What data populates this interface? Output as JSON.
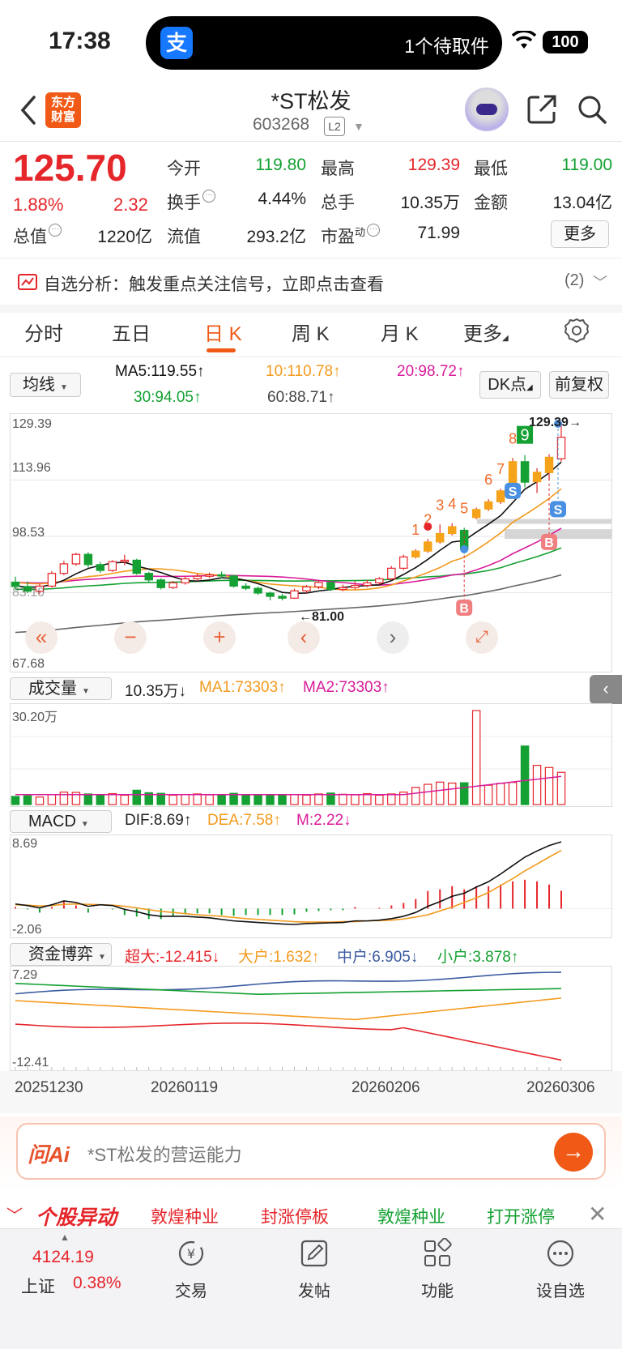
{
  "status_bar": {
    "time": "17:38",
    "island_app_icon": "支",
    "island_text": "1个待取件",
    "battery": "100"
  },
  "header": {
    "logo_text": "东方财富",
    "title": "*ST松发",
    "code": "603268",
    "level_badge": "L2"
  },
  "quote": {
    "price": "125.70",
    "change_pct": "1.88%",
    "change": "2.32",
    "fields": [
      {
        "label": "今开",
        "value": "119.80",
        "color": "green"
      },
      {
        "label": "最高",
        "value": "129.39",
        "color": "red"
      },
      {
        "label": "最低",
        "value": "119.00",
        "color": "green"
      },
      {
        "label": "换手",
        "value": "4.44%",
        "color": "black"
      },
      {
        "label": "总手",
        "value": "10.35万",
        "color": "black"
      },
      {
        "label": "金额",
        "value": "13.04亿",
        "color": "black"
      },
      {
        "label": "总值",
        "value": "1220亿",
        "color": "black"
      },
      {
        "label": "流值",
        "value": "293.2亿",
        "color": "black"
      },
      {
        "label": "市盈",
        "value": "71.99",
        "color": "black"
      }
    ],
    "pe_superscript": "动",
    "more_button": "更多"
  },
  "alert": {
    "text": "自选分析：触发重点关注信号，立即点击查看",
    "count": "(2)"
  },
  "tabs": [
    "分时",
    "五日",
    "日 K",
    "周 K",
    "月 K",
    "更多"
  ],
  "active_tab": "日 K",
  "ma_row": {
    "selector": "均线",
    "ma5": "MA5:119.55↑",
    "ma10": "10:110.78↑",
    "ma20": "20:98.72↑",
    "ma30": "30:94.05↑",
    "ma60": "60:88.71↑",
    "dk_button": "DK点",
    "adjust_button": "前复权"
  },
  "chart_data": {
    "type": "candlestick",
    "y_axis_labels": [
      "129.39",
      "113.96",
      "98.53",
      "83.10",
      "67.68"
    ],
    "high_label": "129.39→",
    "low_label": "←81.00",
    "ylim": [
      67.68,
      129.39
    ],
    "signal_markers": [
      "1",
      "2",
      "3",
      "4",
      "5",
      "6",
      "7",
      "8",
      "9"
    ],
    "buy_marker": "B",
    "sell_marker": "S",
    "candles": [
      [
        86.0,
        84.8,
        87.5,
        84.0
      ],
      [
        84.8,
        83.5,
        86.2,
        83.0
      ],
      [
        83.5,
        84.9,
        85.5,
        82.8
      ],
      [
        84.9,
        88.4,
        89.0,
        84.5
      ],
      [
        88.4,
        91.0,
        91.8,
        87.9
      ],
      [
        91.0,
        93.6,
        94.0,
        90.5
      ],
      [
        93.6,
        90.8,
        94.2,
        90.0
      ],
      [
        90.8,
        89.2,
        91.5,
        88.5
      ],
      [
        89.2,
        91.6,
        92.0,
        88.8
      ],
      [
        91.6,
        92.0,
        93.5,
        90.6
      ],
      [
        92.0,
        88.4,
        92.4,
        88.0
      ],
      [
        88.4,
        86.6,
        88.8,
        86.0
      ],
      [
        86.6,
        84.5,
        87.0,
        84.0
      ],
      [
        84.5,
        85.8,
        86.3,
        84.1
      ],
      [
        85.8,
        86.9,
        87.6,
        85.3
      ],
      [
        86.9,
        87.6,
        88.4,
        86.3
      ],
      [
        87.6,
        88.0,
        88.6,
        87.1
      ],
      [
        88.0,
        87.7,
        88.9,
        87.0
      ],
      [
        87.7,
        84.9,
        88.0,
        84.5
      ],
      [
        84.9,
        84.3,
        85.7,
        83.8
      ],
      [
        84.3,
        83.0,
        84.8,
        82.5
      ],
      [
        83.0,
        82.1,
        83.4,
        81.0
      ],
      [
        82.1,
        81.6,
        82.8,
        81.0
      ],
      [
        81.6,
        83.6,
        84.2,
        81.4
      ],
      [
        83.6,
        84.7,
        85.2,
        83.0
      ],
      [
        84.7,
        85.9,
        86.5,
        84.1
      ],
      [
        85.9,
        84.0,
        86.2,
        83.6
      ],
      [
        84.0,
        84.5,
        85.3,
        83.5
      ],
      [
        84.5,
        85.1,
        86.2,
        84.0
      ],
      [
        85.1,
        85.8,
        86.6,
        84.6
      ],
      [
        85.8,
        86.9,
        87.4,
        85.3
      ],
      [
        86.9,
        89.8,
        90.4,
        86.5
      ],
      [
        89.8,
        92.9,
        93.5,
        89.3
      ],
      [
        92.9,
        94.5,
        95.0,
        92.5
      ],
      [
        94.5,
        97.0,
        97.8,
        94.0
      ],
      [
        97.0,
        99.3,
        101.8,
        96.5
      ],
      [
        99.3,
        101.2,
        102.1,
        98.8
      ],
      [
        100.2,
        95.0,
        100.9,
        93.8
      ],
      [
        103.7,
        105.9,
        106.4,
        103.2
      ],
      [
        106.0,
        108.0,
        108.7,
        105.5
      ],
      [
        108.0,
        111.0,
        111.6,
        107.4
      ],
      [
        113.0,
        119.0,
        120.0,
        112.5
      ],
      [
        119.0,
        113.4,
        120.8,
        112.0
      ],
      [
        113.5,
        116.1,
        117.2,
        110.4
      ],
      [
        116.0,
        120.2,
        121.0,
        113.8
      ],
      [
        119.8,
        125.7,
        129.39,
        119.0
      ]
    ]
  },
  "volume": {
    "selector": "成交量",
    "value": "10.35万↓",
    "ma1": "MA1:73303↑",
    "ma2": "MA2:73303↑",
    "max_label": "30.20万"
  },
  "macd": {
    "selector": "MACD",
    "dif": "DIF:8.69↑",
    "dea": "DEA:7.58↑",
    "m": "M:2.22↓",
    "top_label": "8.69",
    "bottom_label": "-2.06"
  },
  "fund_flow": {
    "selector": "资金博弈",
    "super_large": "超大:-12.415↓",
    "large": "大户:1.632↑",
    "medium": "中户:6.905↓",
    "small": "小户:3.878↑",
    "top_label": "7.29",
    "bottom_label": "-12.41"
  },
  "dates": [
    "20251230",
    "20260119",
    "20260206",
    "20260306"
  ],
  "ask_ai": {
    "logo": "问Ai",
    "placeholder": "*ST松发的营运能力"
  },
  "movers": {
    "title": "个股异动",
    "items": [
      {
        "text": "敦煌种业",
        "color": "red"
      },
      {
        "text": "封涨停板",
        "color": "red"
      },
      {
        "text": "敦煌种业",
        "color": "green"
      },
      {
        "text": "打开涨停",
        "color": "green"
      }
    ]
  },
  "bottom_nav": {
    "index_value": "4124.19",
    "index_name": "上证",
    "index_pct": "0.38%",
    "items": [
      "交易",
      "发帖",
      "功能",
      "设自选"
    ]
  },
  "colors": {
    "up": "#e5262b",
    "down": "#14a032",
    "accent": "#f05a16",
    "ma5": "#111111",
    "ma10": "#f39a1e",
    "ma20": "#d81b9a",
    "ma30": "#14a032",
    "ma60": "#666666"
  }
}
